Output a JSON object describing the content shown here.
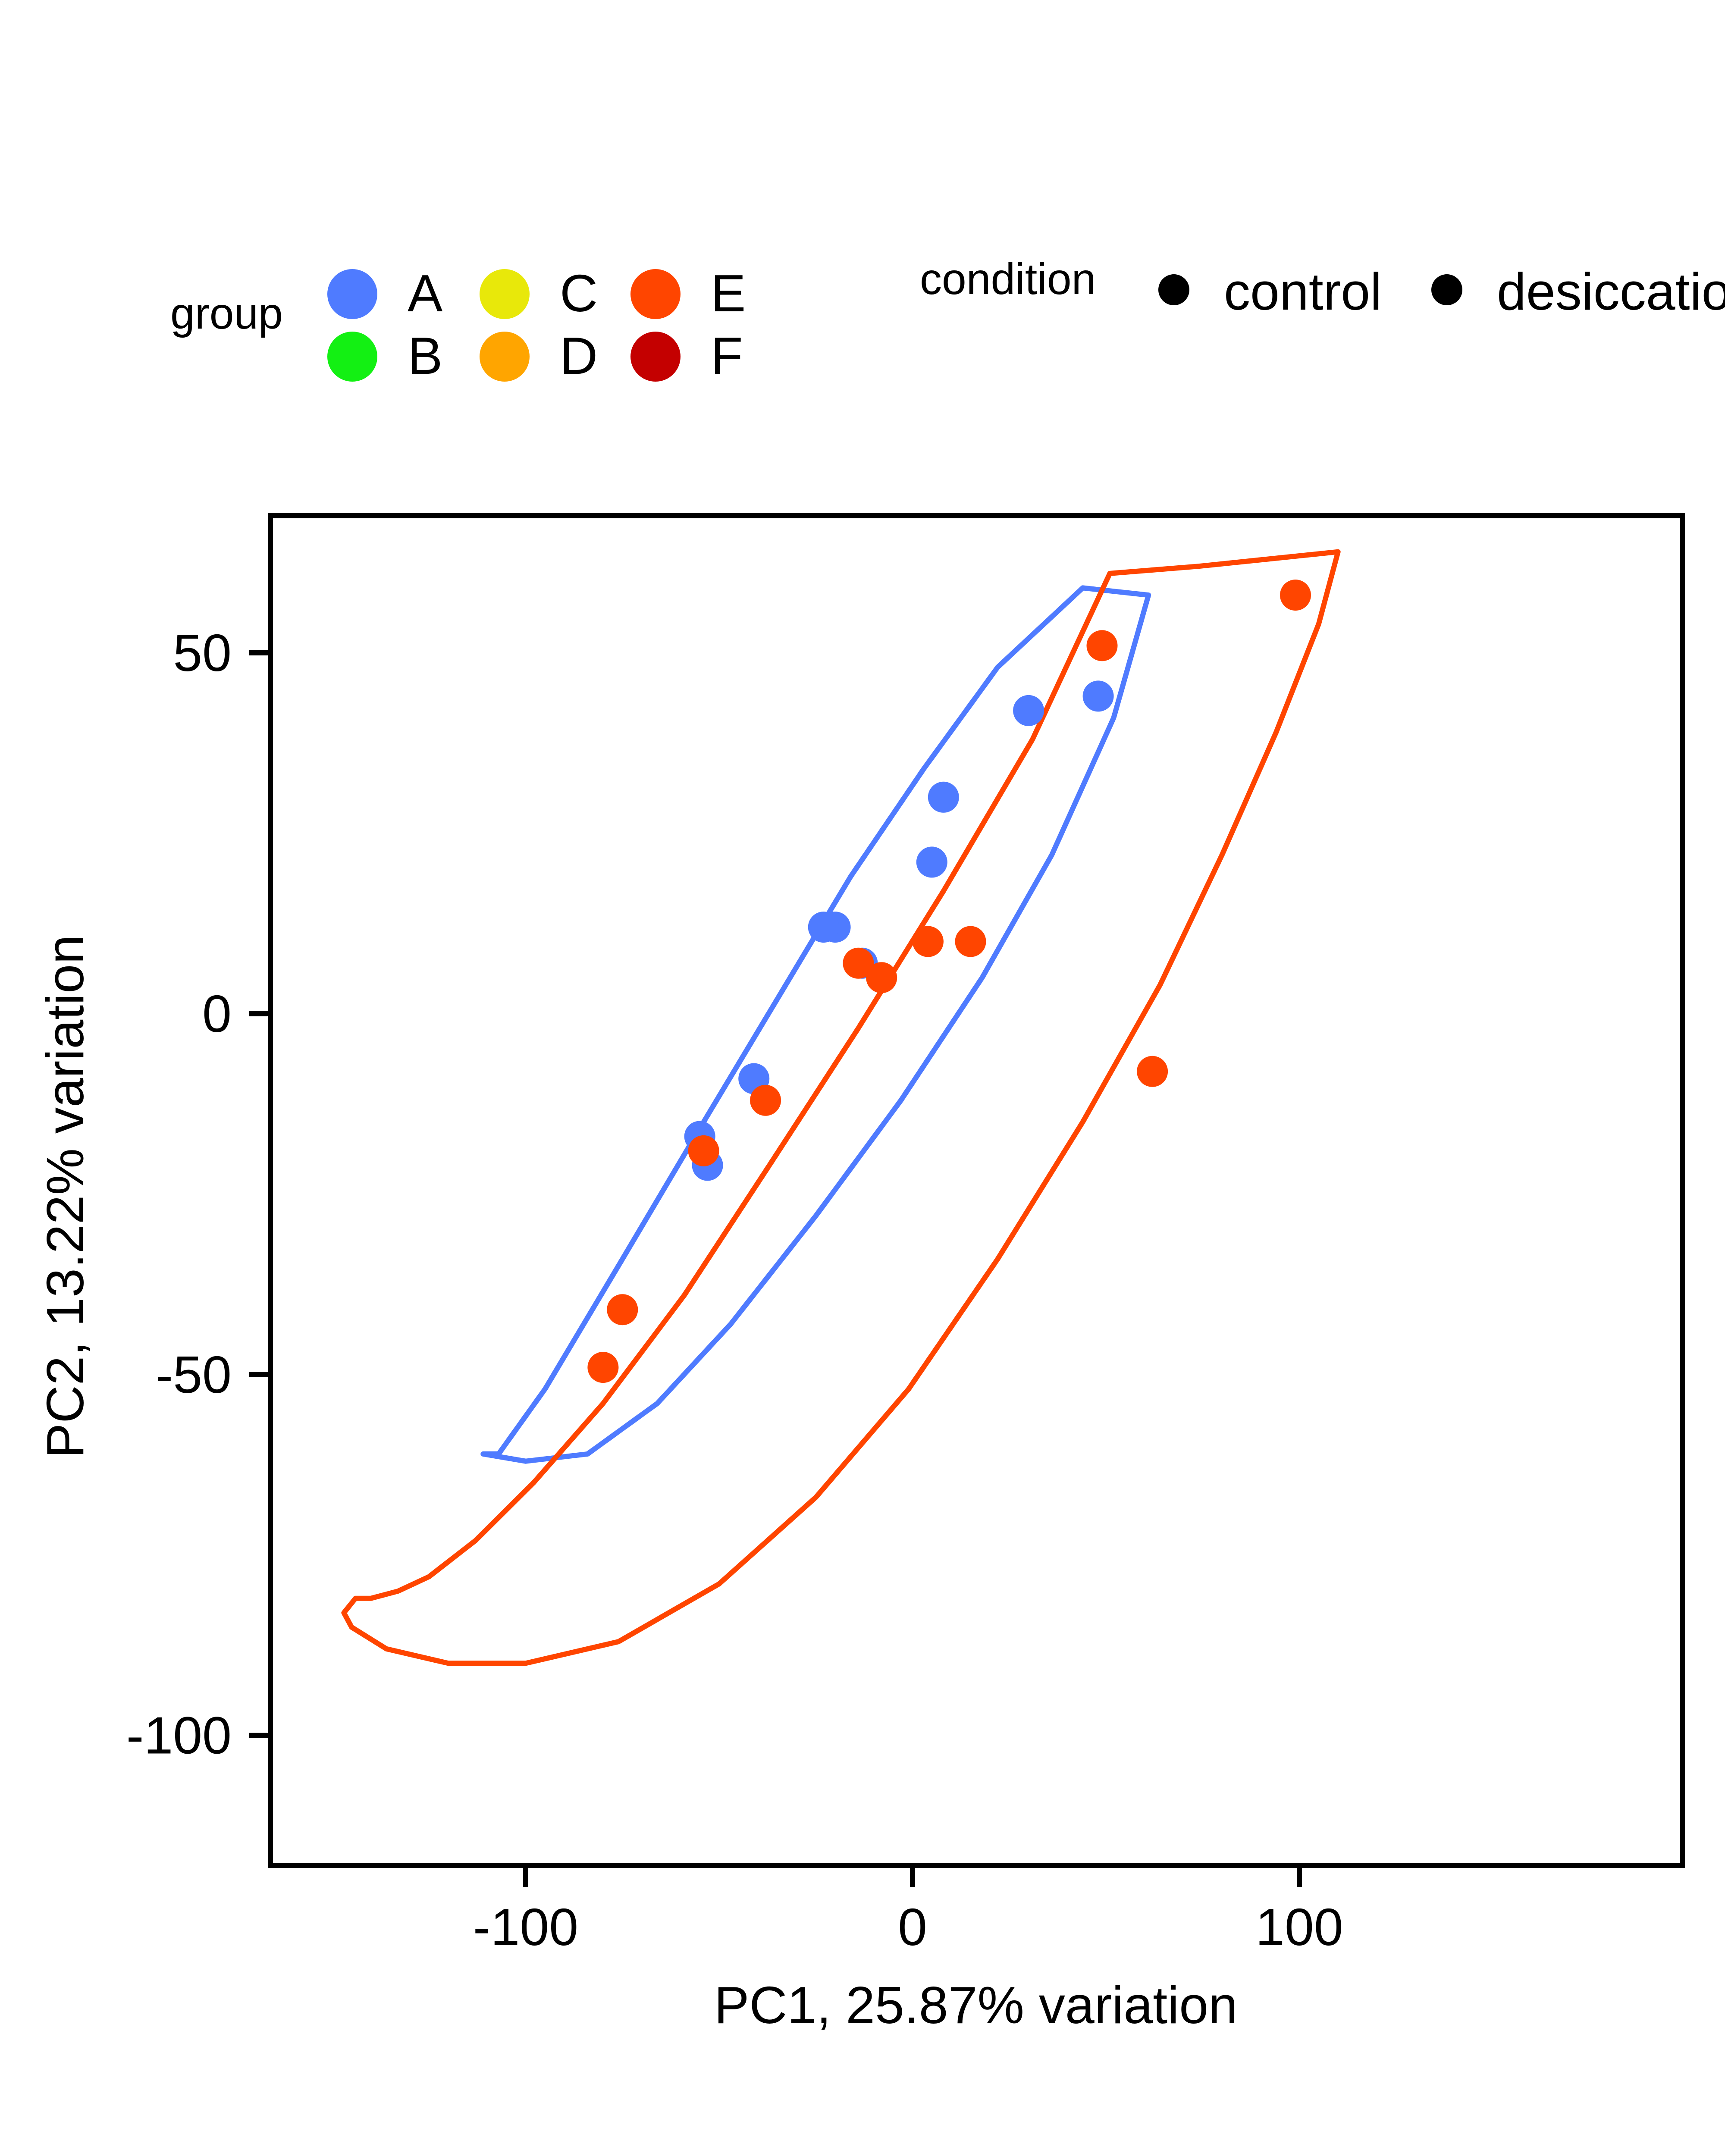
{
  "chart_data": {
    "type": "scatter",
    "title": "",
    "xlabel": "PC1, 25.87% variation",
    "ylabel": "PC2, 13.22% variation",
    "xlim": [
      -166,
      199
    ],
    "ylim": [
      -118,
      69
    ],
    "x_ticks": [
      -100,
      0,
      100
    ],
    "x_tick_labels": [
      "-100",
      "0",
      "100"
    ],
    "y_ticks": [
      50,
      0,
      -50,
      -100
    ],
    "y_tick_labels": [
      "50",
      "0",
      "-50",
      "-100"
    ],
    "grid": false,
    "legend": {
      "placement": "top",
      "group_title": "group",
      "group_items": [
        {
          "label": "A",
          "color": "#4f7bff"
        },
        {
          "label": "B",
          "color": "#13f013"
        },
        {
          "label": "C",
          "color": "#e8e80a"
        },
        {
          "label": "D",
          "color": "#ffa500"
        },
        {
          "label": "E",
          "color": "#ff4500"
        },
        {
          "label": "F",
          "color": "#c40000"
        }
      ],
      "condition_title": "condition",
      "condition_items": [
        {
          "label": "control",
          "color": "#000000"
        },
        {
          "label": "desiccation",
          "color": "#000000"
        }
      ]
    },
    "series": [
      {
        "name": "A",
        "color": "#4f7bff",
        "points": [
          {
            "x": 48,
            "y": 44
          },
          {
            "x": 30,
            "y": 42
          },
          {
            "x": 8,
            "y": 30
          },
          {
            "x": 5,
            "y": 21
          },
          {
            "x": -20,
            "y": 12
          },
          {
            "x": -23,
            "y": 12
          },
          {
            "x": -13,
            "y": 7
          },
          {
            "x": -41,
            "y": -9
          },
          {
            "x": -55,
            "y": -17
          },
          {
            "x": -53,
            "y": -21
          }
        ],
        "ellipse": [
          [
            -111,
            -61
          ],
          [
            -107,
            -61
          ],
          [
            -95,
            -52
          ],
          [
            -75,
            -34
          ],
          [
            -54,
            -15
          ],
          [
            -35,
            2
          ],
          [
            -16,
            19
          ],
          [
            3,
            34
          ],
          [
            22,
            48
          ],
          [
            44,
            59
          ],
          [
            61,
            58
          ],
          [
            52,
            41
          ],
          [
            36,
            22
          ],
          [
            18,
            5
          ],
          [
            -3,
            -12
          ],
          [
            -25,
            -28
          ],
          [
            -47,
            -43
          ],
          [
            -66,
            -54
          ],
          [
            -84,
            -61
          ],
          [
            -100,
            -62
          ]
        ]
      },
      {
        "name": "E",
        "color": "#ff4500",
        "points": [
          {
            "x": 99,
            "y": 58
          },
          {
            "x": 49,
            "y": 51
          },
          {
            "x": 15,
            "y": 10
          },
          {
            "x": 4,
            "y": 10
          },
          {
            "x": -14,
            "y": 7
          },
          {
            "x": -8,
            "y": 5
          },
          {
            "x": -38,
            "y": -12
          },
          {
            "x": -54,
            "y": -19
          },
          {
            "x": -75,
            "y": -41
          },
          {
            "x": -80,
            "y": -49
          },
          {
            "x": 62,
            "y": -8
          }
        ],
        "ellipse": [
          [
            -144,
            -81
          ],
          [
            -140,
            -81
          ],
          [
            -133,
            -80
          ],
          [
            -125,
            -78
          ],
          [
            -113,
            -73
          ],
          [
            -98,
            -65
          ],
          [
            -80,
            -54
          ],
          [
            -59,
            -39
          ],
          [
            -37,
            -21
          ],
          [
            -14,
            -2
          ],
          [
            8,
            17
          ],
          [
            31,
            38
          ],
          [
            51,
            61
          ],
          [
            74,
            62
          ],
          [
            110,
            64
          ],
          [
            105,
            54
          ],
          [
            94,
            39
          ],
          [
            80,
            22
          ],
          [
            64,
            4
          ],
          [
            44,
            -15
          ],
          [
            22,
            -34
          ],
          [
            -1,
            -52
          ],
          [
            -25,
            -67
          ],
          [
            -50,
            -79
          ],
          [
            -76,
            -87
          ],
          [
            -100,
            -90
          ],
          [
            -120,
            -90
          ],
          [
            -136,
            -88
          ],
          [
            -145,
            -85
          ],
          [
            -147,
            -83
          ]
        ]
      }
    ]
  }
}
